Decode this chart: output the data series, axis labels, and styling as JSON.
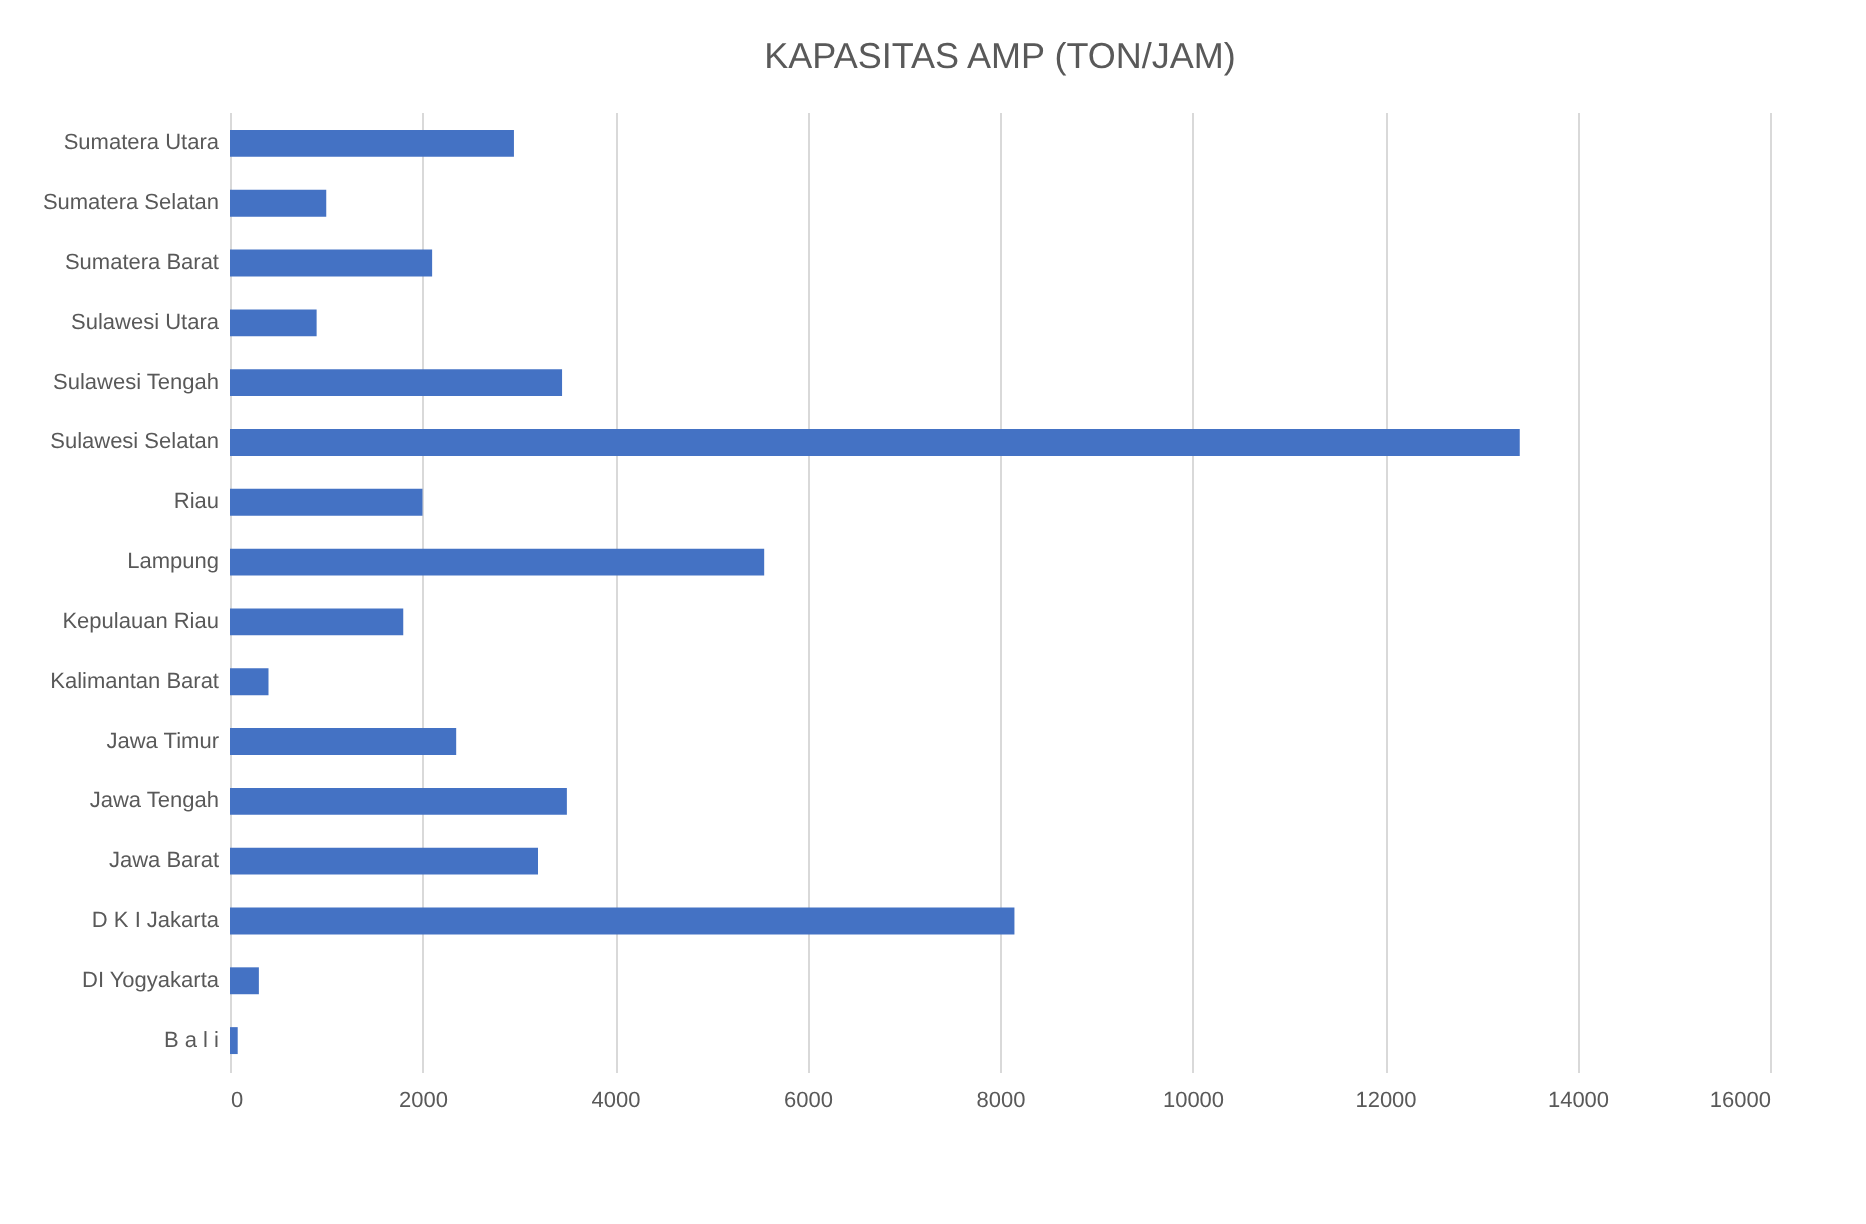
{
  "chart_data": {
    "type": "bar",
    "title": "KAPASITAS AMP (TON/JAM)",
    "orientation": "horizontal",
    "categories": [
      "Sumatera Utara",
      "Sumatera Selatan",
      "Sumatera Barat",
      "Sulawesi Utara",
      "Sulawesi Tengah",
      "Sulawesi Selatan",
      "Riau",
      "Lampung",
      "Kepulauan Riau",
      "Kalimantan Barat",
      "Jawa Timur",
      "Jawa Tengah",
      "Jawa Barat",
      "D K I Jakarta",
      "DI Yogyakarta",
      "B a l i"
    ],
    "values": [
      2950,
      1000,
      2100,
      900,
      3450,
      13400,
      2000,
      5550,
      1800,
      400,
      2350,
      3500,
      3200,
      8150,
      300,
      80
    ],
    "color": "#4472c4",
    "xlim": [
      0,
      16000
    ],
    "xticks": [
      0,
      2000,
      4000,
      6000,
      8000,
      10000,
      12000,
      14000,
      16000
    ],
    "grid": "x"
  }
}
